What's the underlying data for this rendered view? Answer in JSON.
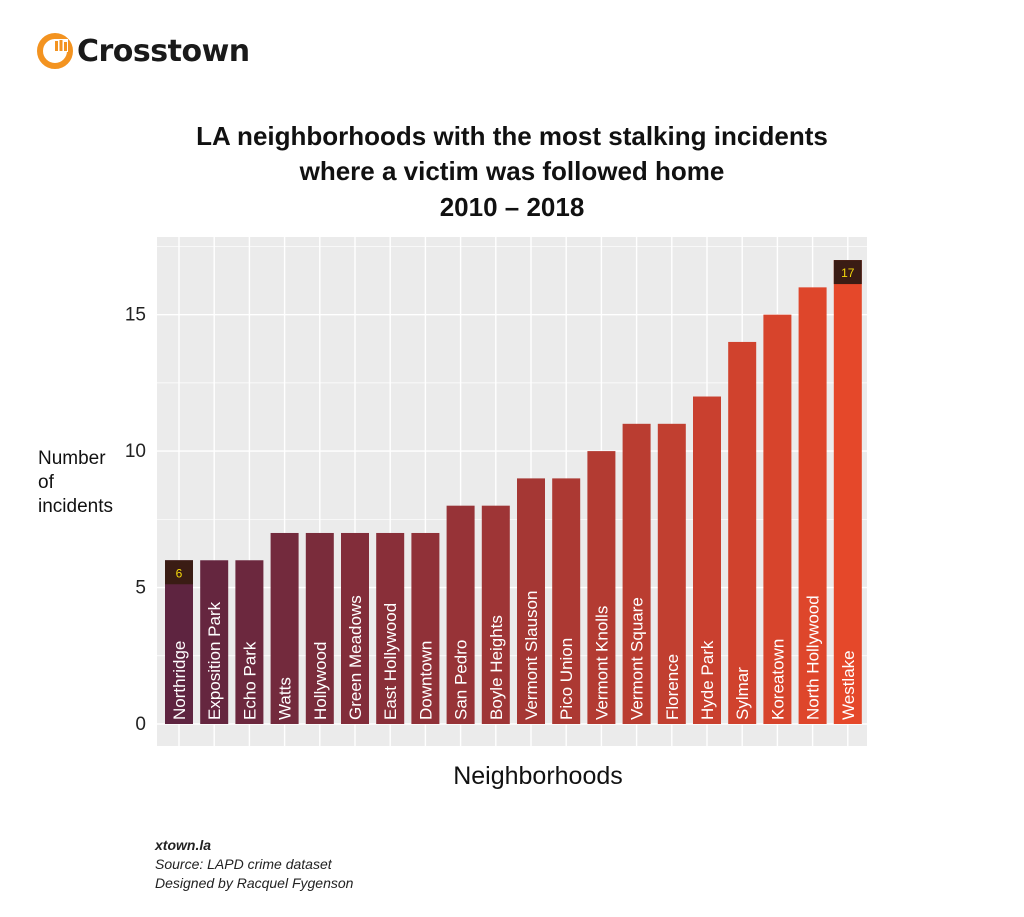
{
  "brand": {
    "name": "Crosstown",
    "accent": "#f39320"
  },
  "chart_data": {
    "type": "bar",
    "title_lines": [
      "LA neighborhoods with the most stalking incidents",
      "where a victim was followed home",
      "2010 – 2018"
    ],
    "xlabel": "Neighborhoods",
    "ylabel_lines": [
      "Number",
      "of",
      "incidents"
    ],
    "ylim": [
      0,
      17.8
    ],
    "yticks": [
      0,
      5,
      10,
      15
    ],
    "grid": true,
    "categories": [
      "Northridge",
      "Exposition Park",
      "Echo Park",
      "Watts",
      "Hollywood",
      "Green Meadows",
      "East Hollywood",
      "Downtown",
      "San Pedro",
      "Boyle Heights",
      "Vermont Slauson",
      "Pico Union",
      "Vermont Knolls",
      "Vermont Square",
      "Florence",
      "Hyde Park",
      "Sylmar",
      "Koreatown",
      "North Hollywood",
      "Westlake"
    ],
    "values": [
      6,
      6,
      6,
      7,
      7,
      7,
      7,
      7,
      8,
      8,
      9,
      9,
      10,
      11,
      11,
      12,
      14,
      15,
      16,
      17
    ],
    "annotations": [
      {
        "category": "Northridge",
        "label": "6"
      },
      {
        "category": "Westlake",
        "label": "17"
      }
    ],
    "colors": {
      "low": "#5e2440",
      "high": "#e5482a",
      "panel": "#ebebeb",
      "grid": "#ffffff",
      "annotation_bg": "#3a1c14",
      "annotation_text": "#f5d90a"
    }
  },
  "footer": {
    "site": "xtown.la",
    "source": "Source: LAPD crime dataset",
    "credit": "Designed by Racquel Fygenson"
  }
}
